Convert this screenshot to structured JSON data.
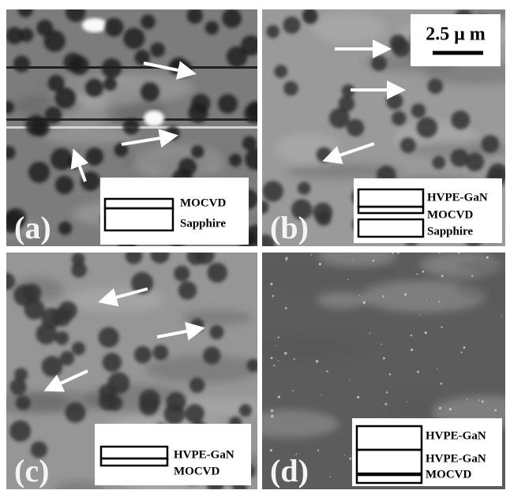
{
  "panels": [
    {
      "label": "(a)",
      "layers": [
        "MOCVD",
        "Sapphire"
      ]
    },
    {
      "label": "(b)",
      "layers": [
        "HVPE-GaN",
        "MOCVD",
        "Sapphire"
      ]
    },
    {
      "label": "(c)",
      "layers": [
        "HVPE-GaN",
        "MOCVD"
      ]
    },
    {
      "label": "(d)",
      "layers": [
        "HVPE-GaN",
        "HVPE-GaN",
        "MOCVD"
      ]
    }
  ],
  "scale_bar": "2.5 μ m"
}
